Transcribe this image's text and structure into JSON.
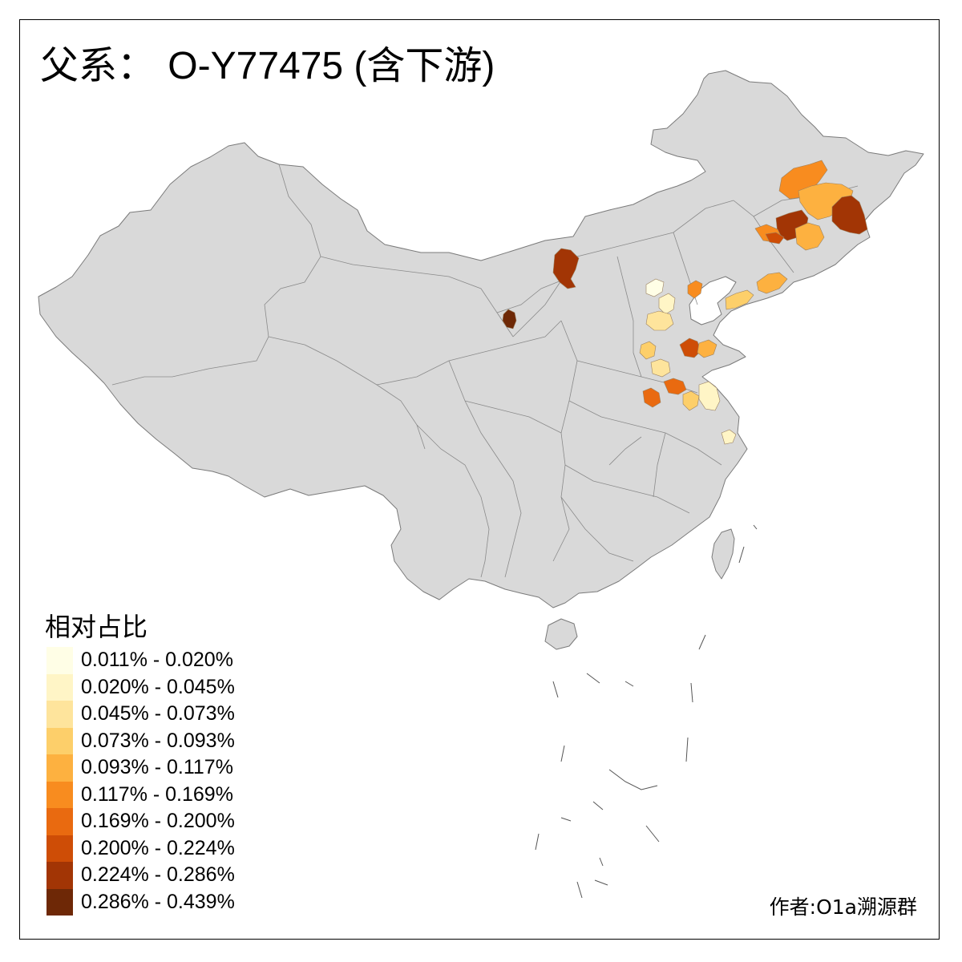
{
  "title": {
    "prefix": "父系：",
    "haplogroup": "O-Y77475 (含下游)"
  },
  "legend": {
    "title": "相对占比",
    "classes": [
      {
        "label": "0.011% - 0.020%",
        "color": "#FFFEE6"
      },
      {
        "label": "0.020% - 0.045%",
        "color": "#FFF5C6"
      },
      {
        "label": "0.045% - 0.073%",
        "color": "#FEE49C"
      },
      {
        "label": "0.073% - 0.093%",
        "color": "#FDCF6A"
      },
      {
        "label": "0.093% - 0.117%",
        "color": "#FDB140"
      },
      {
        "label": "0.117% - 0.169%",
        "color": "#F88C1F"
      },
      {
        "label": "0.169% - 0.200%",
        "color": "#E96A10"
      },
      {
        "label": "0.200% - 0.224%",
        "color": "#CE4D06"
      },
      {
        "label": "0.224% - 0.286%",
        "color": "#A23505"
      },
      {
        "label": "0.286% - 0.439%",
        "color": "#6E2806"
      }
    ]
  },
  "map": {
    "base_color": "#D9D9D9",
    "border_color": "#7A7A7A"
  },
  "author": "作者:O1a溯源群"
}
